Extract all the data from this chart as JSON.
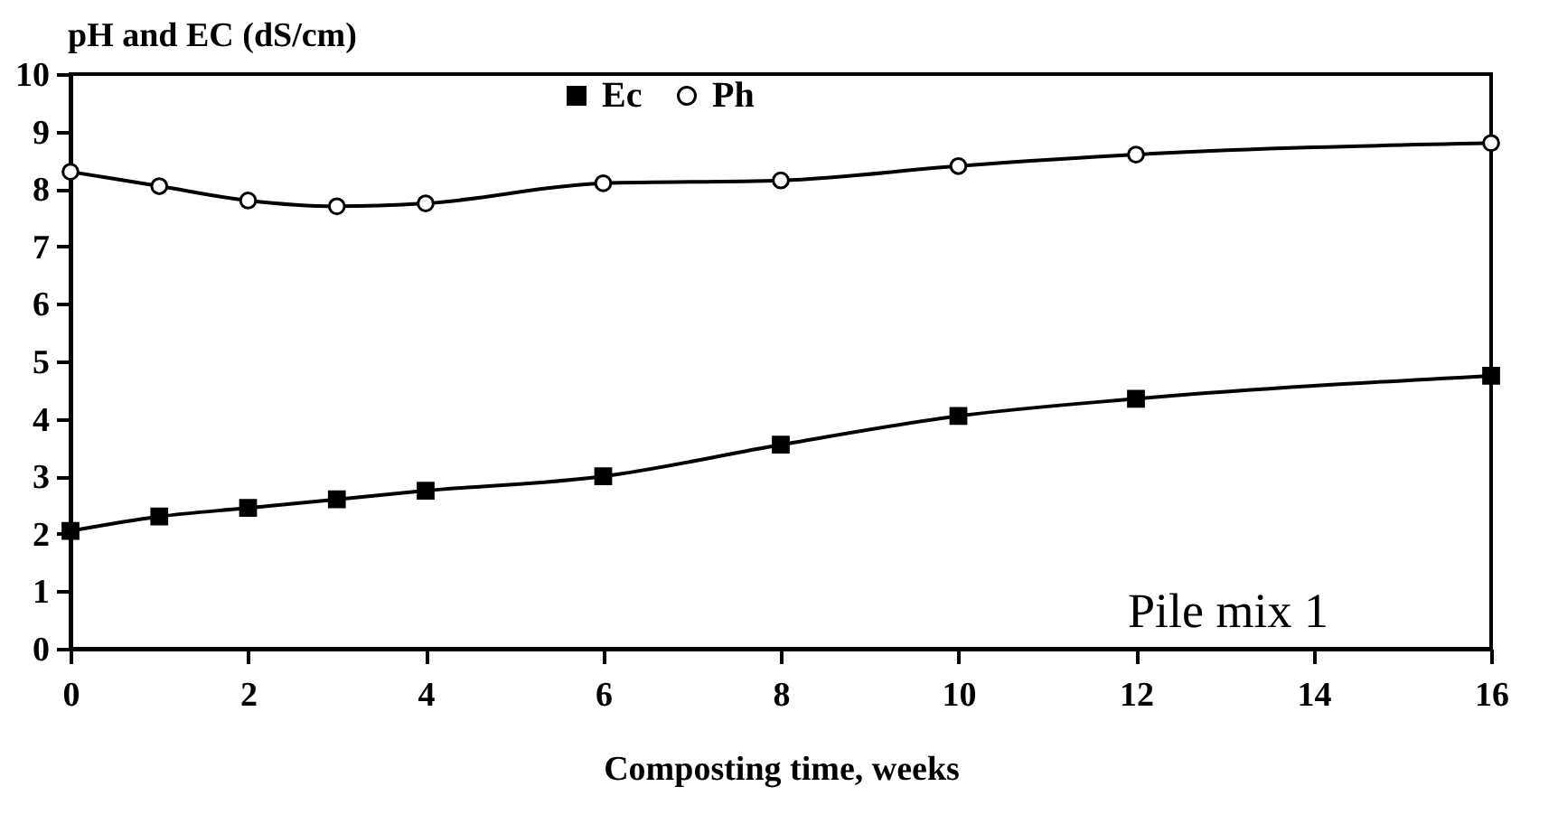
{
  "chart_data": {
    "type": "line",
    "ylabel": "pH and EC (dS/cm)",
    "xlabel": "Composting time, weeks",
    "x": [
      0,
      1,
      2,
      3,
      4,
      6,
      8,
      10,
      12,
      16
    ],
    "series": [
      {
        "name": "Ec",
        "color": "#000000",
        "marker": "square",
        "values": [
          2.05,
          2.3,
          2.45,
          2.6,
          2.75,
          3.0,
          3.55,
          4.05,
          4.35,
          4.75
        ]
      },
      {
        "name": "Ph",
        "color": "#000000",
        "marker": "circle",
        "values": [
          8.3,
          8.05,
          7.8,
          7.7,
          7.75,
          8.1,
          8.15,
          8.4,
          8.6,
          8.8
        ]
      }
    ],
    "xlim": [
      0,
      16
    ],
    "xticks": [
      0,
      2,
      4,
      6,
      8,
      10,
      12,
      14,
      16
    ],
    "ylim": [
      0,
      10
    ],
    "yticks": [
      0,
      1,
      2,
      3,
      4,
      5,
      6,
      7,
      8,
      9,
      10
    ],
    "grid": false,
    "legend": "top",
    "line_style": "solid",
    "annotations": [
      "Pile mix 1"
    ]
  }
}
